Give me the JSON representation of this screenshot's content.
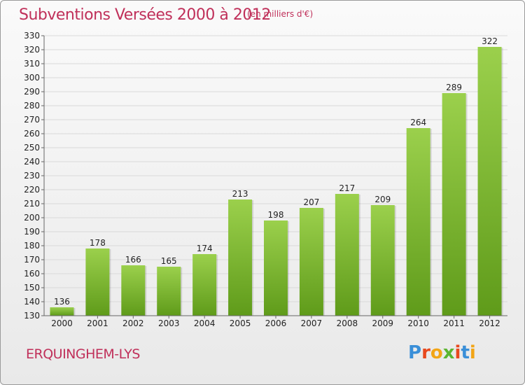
{
  "title": "Subventions Versées 2000 à 2012",
  "subtitle": "(en milliers d'€)",
  "commune": "ERQUINGHEM-LYS",
  "logo": {
    "text": "Proxiti",
    "letters": [
      {
        "char": "P",
        "color": "#3a8fd8"
      },
      {
        "char": "r",
        "color": "#e8491e"
      },
      {
        "char": "o",
        "color": "#f2a516"
      },
      {
        "char": "x",
        "color": "#5bb531"
      },
      {
        "char": "i",
        "color": "#e8491e"
      },
      {
        "char": "t",
        "color": "#3a8fd8"
      },
      {
        "char": "i",
        "color": "#f2a516"
      }
    ]
  },
  "colors": {
    "accent": "#c0305a",
    "bar_top": "#9bd04c",
    "bar_bottom": "#5f9b1a",
    "grid": "#d9d9d9",
    "axis": "#666666"
  },
  "chart_data": {
    "type": "bar",
    "categories": [
      "2000",
      "2001",
      "2002",
      "2003",
      "2004",
      "2005",
      "2006",
      "2007",
      "2008",
      "2009",
      "2010",
      "2011",
      "2012"
    ],
    "values": [
      136,
      178,
      166,
      165,
      174,
      213,
      198,
      207,
      217,
      209,
      264,
      289,
      322
    ],
    "title": "Subventions Versées 2000 à 2012",
    "subtitle": "(en milliers d'€)",
    "xlabel": "",
    "ylabel": "",
    "ylim": [
      130,
      330
    ],
    "ytick_step": 10,
    "grid": true,
    "legend": "none"
  }
}
